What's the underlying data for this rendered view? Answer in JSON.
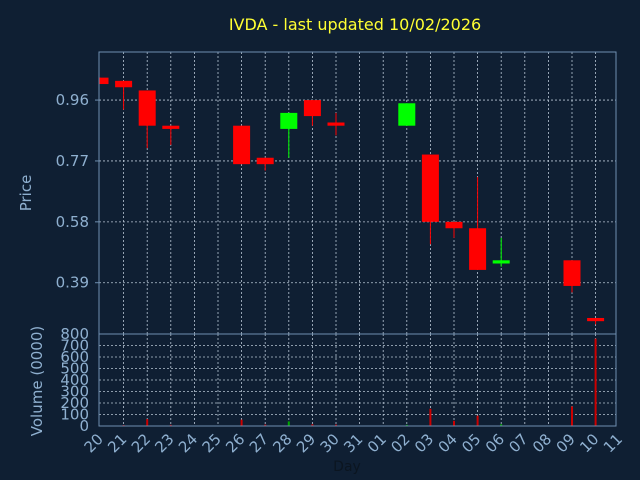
{
  "title": "IVDA - last updated 10/02/2026",
  "colors": {
    "background": "#0f1f33",
    "plot_border": "#6f8fb0",
    "grid": "#b8c6d4",
    "title": "#ffff33",
    "tick": "#8fb0d0",
    "down": "#ff0000",
    "up": "#00ff00",
    "volume_down": "#cc0000",
    "volume_up": "#00aa00"
  },
  "chart_data": [
    {
      "type": "candlestick",
      "panel": "price",
      "ylabel": "Price",
      "ylim": [
        0.23,
        1.11
      ],
      "yticks": [
        "0.96",
        "0.77",
        "0.58",
        "0.39"
      ],
      "x": [
        "20",
        "21",
        "22",
        "23",
        "24",
        "25",
        "26",
        "27",
        "28",
        "29",
        "30",
        "31",
        "01",
        "02",
        "03",
        "04",
        "05",
        "06",
        "07",
        "08",
        "09",
        "10",
        "11"
      ],
      "grid": true,
      "candles": [
        {
          "x": "20",
          "open": 1.03,
          "close": 1.01,
          "high": 1.03,
          "low": 1.01
        },
        {
          "x": "21",
          "open": 1.02,
          "close": 1.0,
          "high": 1.02,
          "low": 0.93
        },
        {
          "x": "22",
          "open": 0.99,
          "close": 0.88,
          "high": 0.99,
          "low": 0.81
        },
        {
          "x": "23",
          "open": 0.88,
          "close": 0.87,
          "high": 0.88,
          "low": 0.82
        },
        {
          "x": "26",
          "open": 0.88,
          "close": 0.76,
          "high": 0.88,
          "low": 0.76
        },
        {
          "x": "27",
          "open": 0.78,
          "close": 0.76,
          "high": 0.78,
          "low": 0.74
        },
        {
          "x": "28",
          "open": 0.87,
          "close": 0.92,
          "high": 0.92,
          "low": 0.78
        },
        {
          "x": "29",
          "open": 0.96,
          "close": 0.91,
          "high": 0.96,
          "low": 0.88
        },
        {
          "x": "30",
          "open": 0.89,
          "close": 0.88,
          "high": 0.92,
          "low": 0.85
        },
        {
          "x": "02",
          "open": 0.88,
          "close": 0.95,
          "high": 0.95,
          "low": 0.88
        },
        {
          "x": "03",
          "open": 0.79,
          "close": 0.58,
          "high": 0.79,
          "low": 0.51
        },
        {
          "x": "04",
          "open": 0.58,
          "close": 0.56,
          "high": 0.58,
          "low": 0.53
        },
        {
          "x": "05",
          "open": 0.56,
          "close": 0.43,
          "high": 0.72,
          "low": 0.43
        },
        {
          "x": "06",
          "open": 0.45,
          "close": 0.46,
          "high": 0.53,
          "low": 0.44
        },
        {
          "x": "09",
          "open": 0.46,
          "close": 0.38,
          "high": 0.46,
          "low": 0.36
        },
        {
          "x": "10",
          "open": 0.28,
          "close": 0.27,
          "high": 0.28,
          "low": 0.26
        }
      ]
    },
    {
      "type": "bar",
      "panel": "volume",
      "ylabel": "Volume (0000)",
      "ylim": [
        0,
        800
      ],
      "yticks": [
        "0",
        "100",
        "200",
        "300",
        "400",
        "500",
        "600",
        "700",
        "800"
      ],
      "xlabel": "Day",
      "x": [
        "20",
        "21",
        "22",
        "23",
        "24",
        "25",
        "26",
        "27",
        "28",
        "29",
        "30",
        "31",
        "01",
        "02",
        "03",
        "04",
        "05",
        "06",
        "07",
        "08",
        "09",
        "10",
        "11"
      ],
      "bars": [
        {
          "x": "21",
          "value": 8,
          "dir": "down"
        },
        {
          "x": "22",
          "value": 60,
          "dir": "down"
        },
        {
          "x": "23",
          "value": 10,
          "dir": "down"
        },
        {
          "x": "26",
          "value": 55,
          "dir": "down"
        },
        {
          "x": "27",
          "value": 12,
          "dir": "down"
        },
        {
          "x": "28",
          "value": 40,
          "dir": "up"
        },
        {
          "x": "29",
          "value": 15,
          "dir": "down"
        },
        {
          "x": "30",
          "value": 12,
          "dir": "down"
        },
        {
          "x": "02",
          "value": 10,
          "dir": "up"
        },
        {
          "x": "03",
          "value": 150,
          "dir": "down"
        },
        {
          "x": "04",
          "value": 45,
          "dir": "down"
        },
        {
          "x": "05",
          "value": 90,
          "dir": "down"
        },
        {
          "x": "06",
          "value": 15,
          "dir": "up"
        },
        {
          "x": "09",
          "value": 170,
          "dir": "down"
        },
        {
          "x": "10",
          "value": 760,
          "dir": "down"
        }
      ]
    }
  ]
}
